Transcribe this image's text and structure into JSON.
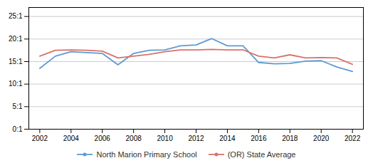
{
  "chart_data": {
    "type": "line",
    "x": [
      2002,
      2003,
      2004,
      2005,
      2006,
      2007,
      2008,
      2009,
      2010,
      2011,
      2012,
      2013,
      2014,
      2015,
      2016,
      2017,
      2018,
      2019,
      2020,
      2021,
      2022
    ],
    "series": [
      {
        "name": "North Marion Primary School",
        "color": "#5b9bd5",
        "values": [
          13.5,
          16.2,
          17.2,
          17.0,
          16.8,
          14.3,
          16.8,
          17.5,
          17.6,
          18.5,
          18.7,
          20.1,
          18.5,
          18.5,
          14.8,
          14.5,
          14.6,
          15.1,
          15.2,
          13.8,
          12.8
        ]
      },
      {
        "name": "(OR) State Average",
        "color": "#d9726a",
        "values": [
          16.2,
          17.5,
          17.6,
          17.5,
          17.3,
          15.8,
          16.2,
          16.6,
          17.2,
          17.6,
          17.6,
          17.7,
          17.6,
          17.6,
          16.2,
          15.8,
          16.5,
          15.8,
          15.9,
          15.8,
          14.4
        ]
      }
    ],
    "xlim": [
      2001.3,
      2022.7
    ],
    "xticks": [
      2002,
      2004,
      2006,
      2008,
      2010,
      2012,
      2014,
      2016,
      2018,
      2020,
      2022
    ],
    "ylim": [
      0,
      27
    ],
    "yticks": [
      {
        "value": 0,
        "label": "0:1"
      },
      {
        "value": 5,
        "label": "5:1"
      },
      {
        "value": 10,
        "label": "10:1"
      },
      {
        "value": 15,
        "label": "15:1"
      },
      {
        "value": 20,
        "label": "20:1"
      },
      {
        "value": 25,
        "label": "25:1"
      }
    ],
    "grid": true,
    "legend": "bottom"
  }
}
